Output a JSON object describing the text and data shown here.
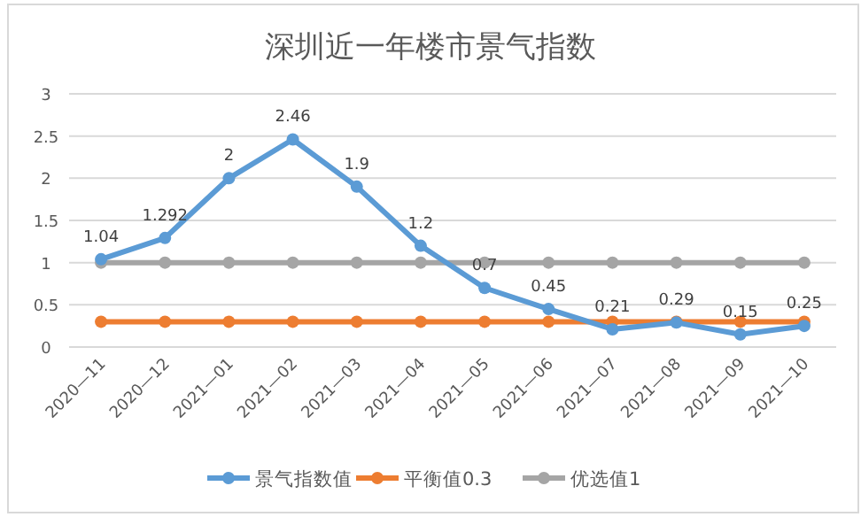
{
  "chart_data": {
    "type": "line",
    "title": "深圳近一年楼市景气指数",
    "categories": [
      "2020—11",
      "2020—12",
      "2021—01",
      "2021—02",
      "2021—03",
      "2021—04",
      "2021—05",
      "2021—06",
      "2021—07",
      "2021—08",
      "2021—09",
      "2021—10"
    ],
    "series": [
      {
        "name": "景气指数值",
        "color": "#5b9bd5",
        "values": [
          1.04,
          1.292,
          2,
          2.46,
          1.9,
          1.2,
          0.7,
          0.45,
          0.21,
          0.29,
          0.15,
          0.25
        ],
        "value_labels": [
          "1.04",
          "1.292",
          "2",
          "2.46",
          "1.9",
          "1.2",
          "0.7",
          "0.45",
          "0.21",
          "0.29",
          "0.15",
          "0.25"
        ]
      },
      {
        "name": "平衡值0.3",
        "color": "#ed7d31",
        "values": [
          0.3,
          0.3,
          0.3,
          0.3,
          0.3,
          0.3,
          0.3,
          0.3,
          0.3,
          0.3,
          0.3,
          0.3
        ]
      },
      {
        "name": "优选值1",
        "color": "#a5a5a5",
        "values": [
          1,
          1,
          1,
          1,
          1,
          1,
          1,
          1,
          1,
          1,
          1,
          1
        ]
      }
    ],
    "ylim": [
      0,
      3
    ],
    "yticks": [
      0,
      0.5,
      1,
      1.5,
      2,
      2.5,
      3
    ],
    "grid": "y",
    "legend": "bottom",
    "marker": "circle",
    "line_style": "solid"
  }
}
